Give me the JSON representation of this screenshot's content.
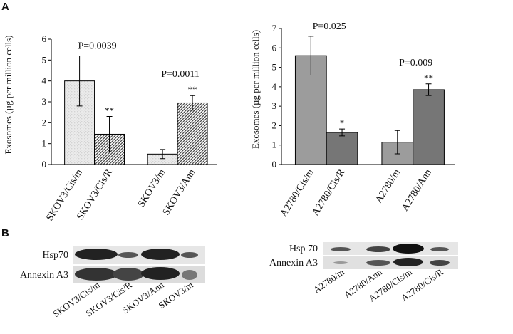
{
  "panel_labels": [
    "A",
    "B"
  ],
  "chart_data": [
    {
      "type": "bar",
      "ylabel": "Exosomes (µg per million cells)",
      "categories": [
        "SKOV3/Cis/m",
        "SKOV3/Cis/R",
        "SKOV3/m",
        "SKOV3/Ann"
      ],
      "values": [
        4.0,
        1.45,
        0.5,
        2.95
      ],
      "errors": [
        1.2,
        0.85,
        0.22,
        0.35
      ],
      "star_labels": [
        null,
        "**",
        null,
        "**"
      ],
      "p_values": [
        "P=0.0039",
        "P=0.0011"
      ],
      "colors": [
        "#d4d4d4",
        "#4a4a4a"
      ],
      "hatch": true,
      "ylim": [
        0,
        6
      ],
      "yticks": [
        0,
        1,
        2,
        3,
        4,
        5,
        6
      ]
    },
    {
      "type": "bar",
      "ylabel": "Exosomes (µg per million cells)",
      "categories": [
        "A2780/Cis/m",
        "A2780/Cis/R",
        "A2780/m",
        "A2780/Ann"
      ],
      "values": [
        5.6,
        1.65,
        1.15,
        3.85
      ],
      "errors": [
        1.0,
        0.18,
        0.6,
        0.3
      ],
      "star_labels": [
        null,
        "*",
        null,
        "**"
      ],
      "p_values": [
        "P=0.025",
        "P=0.009"
      ],
      "colors": [
        "#9c9c9c",
        "#767676"
      ],
      "hatch": false,
      "ylim": [
        0,
        7
      ],
      "yticks": [
        0,
        1,
        2,
        3,
        4,
        5,
        6,
        7
      ]
    }
  ],
  "blots": [
    {
      "rows": [
        "Hsp70",
        "Annexin A3"
      ],
      "lanes": [
        "SKOV3/Cis/m",
        "SKOV3/Cis/R",
        "SKOV3/Ann",
        "SKOV3/m"
      ]
    },
    {
      "rows": [
        "Hsp 70",
        "Annexin A3"
      ],
      "lanes": [
        "A2780/m",
        "A2780/Ann",
        "A2780/Cis/m",
        "A2780/Cis/R"
      ]
    }
  ]
}
